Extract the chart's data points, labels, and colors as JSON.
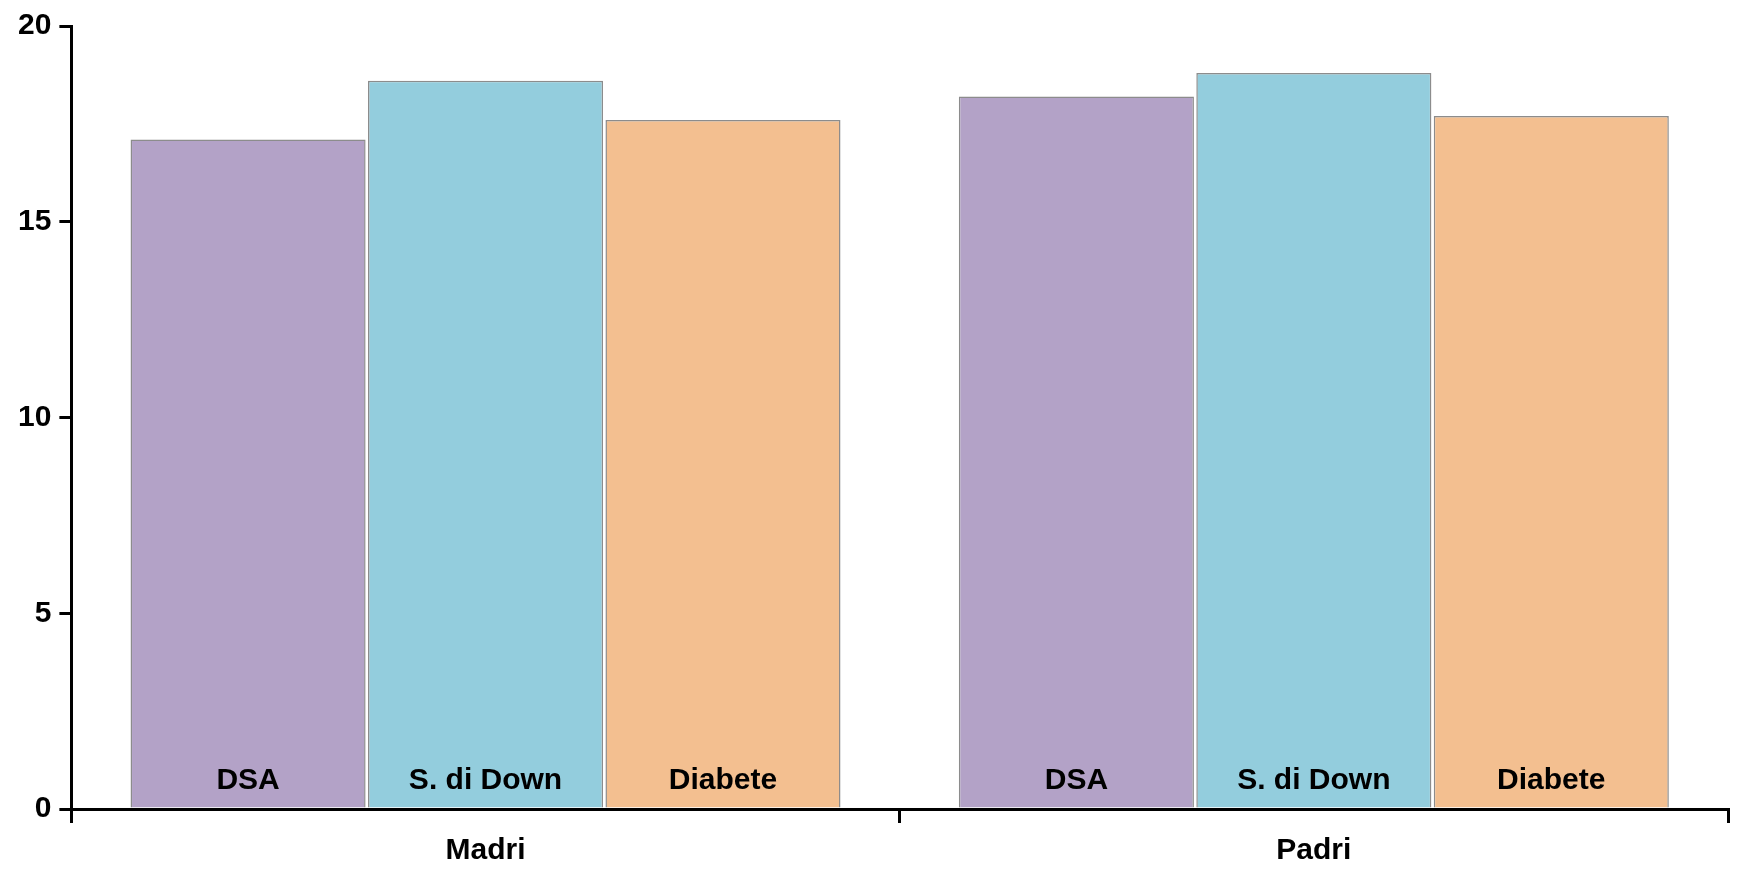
{
  "chart_data": {
    "type": "bar",
    "categories": [
      "Madri",
      "Padri"
    ],
    "series": [
      {
        "name": "DSA",
        "color": "#b3a2c7",
        "values": [
          17.1,
          18.2
        ]
      },
      {
        "name": "S. di Down",
        "color": "#93cddd",
        "values": [
          18.6,
          18.8
        ]
      },
      {
        "name": "Diabete",
        "color": "#f3bf90",
        "values": [
          17.6,
          17.7
        ]
      }
    ],
    "ylim": [
      0,
      20
    ],
    "yticks": [
      0,
      5,
      10,
      15,
      20
    ],
    "grid": false,
    "legend": false
  }
}
